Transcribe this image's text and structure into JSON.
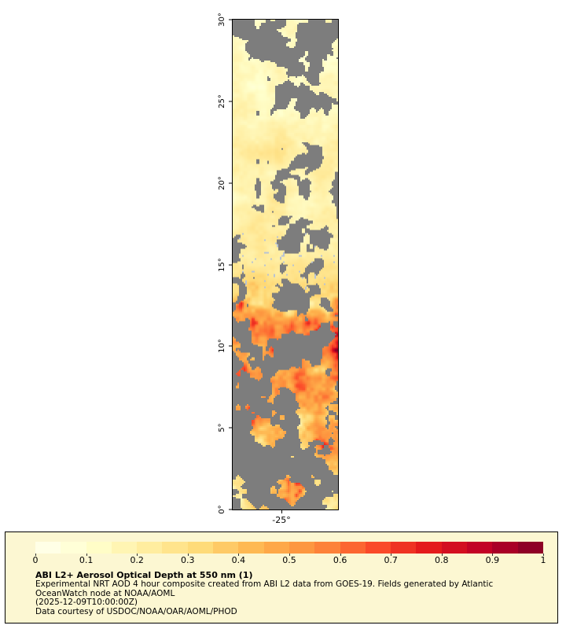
{
  "map": {
    "no_data_color": "#7d7d7d",
    "y_axis": {
      "ticks": [
        "30°",
        "25°",
        "20°",
        "15°",
        "10°",
        "5°",
        "0°"
      ]
    },
    "x_axis": {
      "ticks": [
        "-25°"
      ]
    },
    "lat_range": [
      0,
      30
    ],
    "variable": "aerosol optical depth at 550 nm"
  },
  "colormap": {
    "stops": [
      "#ffffee",
      "#ffffcc",
      "#ffeda0",
      "#fed976",
      "#feb24c",
      "#fd8d3c",
      "#fc4e2a",
      "#e31a1c",
      "#bd0026",
      "#800026"
    ],
    "segments": 20,
    "range": [
      0,
      1
    ]
  },
  "legend": {
    "background": "#fcf7d2",
    "colorbar_ticks": [
      "0",
      "0.1",
      "0.2",
      "0.3",
      "0.4",
      "0.5",
      "0.6",
      "0.7",
      "0.8",
      "0.9",
      "1"
    ],
    "title": "ABI L2+ Aerosol Optical Depth at 550 nm (1)",
    "description_lines": [
      "Experimental NRT AOD 4 hour composite created from ABI L2 data from GOES-19. Fields generated by Atlantic",
      "OceanWatch node at NOAA/AOML"
    ],
    "timestamp": "(2025-12-09T10:00:00Z)",
    "courtesy": "Data courtesy of USDOC/NOAA/OAR/AOML/PHOD"
  }
}
